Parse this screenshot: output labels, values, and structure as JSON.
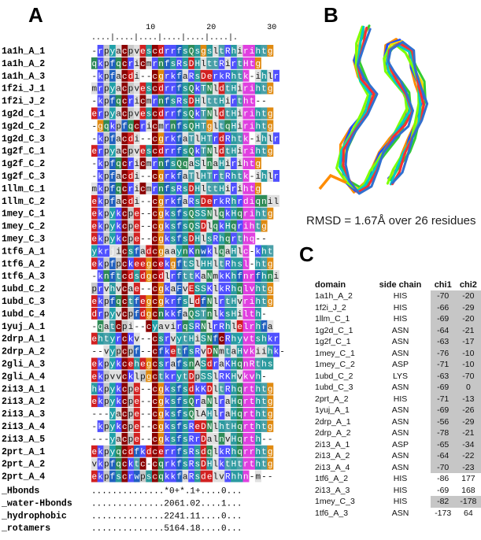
{
  "panel_labels": {
    "a": "A",
    "b": "B",
    "c": "C"
  },
  "alignment": {
    "ruler_numbers": [
      "10",
      "20",
      "30"
    ],
    "ruler_line": "....|....|....|....|....|....|.",
    "rows": [
      {
        "id": "1a1h_A_1",
        "seq": "-rpyacpvescdrrfsQsgsltRhirihtg"
      },
      {
        "id": "1a1h_A_2",
        "seq": "qkpfqcricmrnfsRsDHlttRirtHtg"
      },
      {
        "id": "1a1h_A_3",
        "seq": "-kpfacdi--cgrkfaRsDerkRhtk-ihlr"
      },
      {
        "id": "1f2i_J_1",
        "seq": "mrpyacpvescdrrfsQkTNldtHirihtg"
      },
      {
        "id": "1f2i_J_2",
        "seq": "-kpfqcricmrnfsRsDHlttHirtht--"
      },
      {
        "id": "1g2d_C_1",
        "seq": "erpyacpvescdrrfsQkTNldtHirihtg"
      },
      {
        "id": "1g2d_C_2",
        "seq": "-gqkpfqcricmrnfsQHTgltqHirihtg"
      },
      {
        "id": "1g2d_C_3",
        "seq": "-kpfacdi--cgrkfaTlHTrdRhtk-ihlr"
      },
      {
        "id": "1g2f_C_1",
        "seq": "erpyacpvescdrrfsQkTNldtHirihtg"
      },
      {
        "id": "1g2f_C_2",
        "seq": "-kpfqcricmrnfsQqaSlnaHirihtg"
      },
      {
        "id": "1g2f_C_3",
        "seq": "-kpfacdi--cgrkfaTlHTrtRhtk-ihlr"
      },
      {
        "id": "1llm_C_1",
        "seq": "mkpfqcricmrnfsRsDHlttHirihtg"
      },
      {
        "id": "1llm_C_2",
        "seq": "ekpfacdi--cgrkfaRsDerkRhrdiqnil"
      },
      {
        "id": "1mey_C_1",
        "seq": "ekpykcpe--cgksfsQSSNlqkHqrihtg"
      },
      {
        "id": "1mey_C_2",
        "seq": "ekpykcpe--cgksfsQSDlqkHqrihtg"
      },
      {
        "id": "1mey_C_3",
        "seq": "ekpykcpe--cgksfsDHlsRhqrthq--"
      },
      {
        "id": "1tf6_A_1",
        "seq": "ykrjicsfadcgaaynKnwklqaHlc-kht"
      },
      {
        "id": "1tf6_A_2",
        "seq": "ekpfpckeegcekgftSlHHltRhsl-htg"
      },
      {
        "id": "1tf6_A_3",
        "seq": "-knftcdsdgcdlrfttKaNmkKhfnrfhni"
      },
      {
        "id": "1ubd_C_2",
        "seq": "prvhvcae--cgkaFvESSKlkRhqlvhtg"
      },
      {
        "id": "1ubd_C_3",
        "seq": "ekpfqctfegcgkrfsLdfNlrtHvrihtg"
      },
      {
        "id": "1ubd_C_4",
        "seq": "drpyvcpfdgcnkkfaQSTnlksHilth-"
      },
      {
        "id": "1yuj_A_1",
        "seq": "-qatcpi--cyavirqSRNlrRhlelrhfa"
      },
      {
        "id": "2drp_A_1",
        "seq": "ehtyrckv--csrvytHiSNfcRhyvtshkr"
      },
      {
        "id": "2drp_A_2",
        "seq": "--vypcpf--cfketfsRvDNmtaHvkiihk-"
      },
      {
        "id": "2gli_A_3",
        "seq": "ekpykcehegcsrafsnASdraKHqnRths"
      },
      {
        "id": "2gli_A_4",
        "seq": "ekpvvcklpgctkrytDpSSlRKHvkvh-"
      },
      {
        "id": "2i13_A_1",
        "seq": "hkpykcpe--cgksfsdkKDltRhqrthtg"
      },
      {
        "id": "2i13_A_2",
        "seq": "ekpykcpe--cgksfsQraNlraHqrthtg"
      },
      {
        "id": "2i13_A_3",
        "seq": "---yacpe--cgksfsQlAHlraHqrthtg"
      },
      {
        "id": "2i13_A_4",
        "seq": "-kpykcpe--cgksfsReDNlhtHqrthtg"
      },
      {
        "id": "2i13_A_5",
        "seq": "---yacpe--cgksfsRrDalnvHqrth--"
      },
      {
        "id": "2prt_A_1",
        "seq": "ekpyqcdfkdcerrfsRsdqlkRhqrrhtg"
      },
      {
        "id": "2prt_A_2",
        "seq": "vkpfqcktc-cqrkfsRsDHlktHtrthtg"
      },
      {
        "id": "2prt_A_4",
        "seq": "ekpfscrwpscqkkfaRsdelvRhhn-m--"
      }
    ],
    "annotations": [
      {
        "label": "_Hbonds",
        "value": "..............*0+*.1+....0..."
      },
      {
        "label": "_water-Hbonds",
        "value": "..............2061.02....1..."
      },
      {
        "label": "_hydrophobic",
        "value": "..............2241.11....0..."
      },
      {
        "label": "_rotamers",
        "value": "..............5164.18....0..."
      }
    ]
  },
  "structure": {
    "caption": "RMSD = 1.67Å  over 26 residues",
    "trace_colors": [
      "#ff8c00",
      "#1e50ff",
      "#ffd700",
      "#32cd32",
      "#7fff00",
      "#00c8c8",
      "#ff3030",
      "#3070d0"
    ]
  },
  "chi_table": {
    "headers": {
      "domain": "domain",
      "side_chain": "side chain",
      "chi1": "chi1",
      "chi2": "chi2"
    },
    "rows": [
      {
        "domain": "1a1h_A_2",
        "side_chain": "HIS",
        "chi1": "-70",
        "chi2": "-20",
        "highlight": true
      },
      {
        "domain": "1f2i_J_2",
        "side_chain": "HIS",
        "chi1": "-66",
        "chi2": "-29",
        "highlight": true
      },
      {
        "domain": "1llm_C_1",
        "side_chain": "HIS",
        "chi1": "-69",
        "chi2": "-20",
        "highlight": true
      },
      {
        "domain": "1g2d_C_1",
        "side_chain": "ASN",
        "chi1": "-64",
        "chi2": "-21",
        "highlight": true
      },
      {
        "domain": "1g2f_C_1",
        "side_chain": "ASN",
        "chi1": "-63",
        "chi2": "-17",
        "highlight": true
      },
      {
        "domain": "1mey_C_1",
        "side_chain": "ASN",
        "chi1": "-76",
        "chi2": "-10",
        "highlight": true
      },
      {
        "domain": "1mey_C_2",
        "side_chain": "ASP",
        "chi1": "-71",
        "chi2": "-10",
        "highlight": true
      },
      {
        "domain": "1ubd_C_2",
        "side_chain": "LYS",
        "chi1": "-63",
        "chi2": "-70",
        "highlight": true
      },
      {
        "domain": "1ubd_C_3",
        "side_chain": "ASN",
        "chi1": "-69",
        "chi2": "0",
        "highlight": true
      },
      {
        "domain": "2prt_A_2",
        "side_chain": "HIS",
        "chi1": "-71",
        "chi2": "-13",
        "highlight": true
      },
      {
        "domain": "1yuj_A_1",
        "side_chain": "ASN",
        "chi1": "-69",
        "chi2": "-26",
        "highlight": true
      },
      {
        "domain": "2drp_A_1",
        "side_chain": "ASN",
        "chi1": "-56",
        "chi2": "-29",
        "highlight": true
      },
      {
        "domain": "2drp_A_2",
        "side_chain": "ASN",
        "chi1": "-78",
        "chi2": "-21",
        "highlight": true
      },
      {
        "domain": "2i13_A_1",
        "side_chain": "ASP",
        "chi1": "-65",
        "chi2": "-34",
        "highlight": true
      },
      {
        "domain": "2i13_A_2",
        "side_chain": "ASN",
        "chi1": "-64",
        "chi2": "-22",
        "highlight": true
      },
      {
        "domain": "2i13_A_4",
        "side_chain": "ASN",
        "chi1": "-70",
        "chi2": "-23",
        "highlight": true
      },
      {
        "domain": "1tf6_A_2",
        "side_chain": "HIS",
        "chi1": "-86",
        "chi2": "177",
        "highlight": false
      },
      {
        "domain": "2i13_A_3",
        "side_chain": "HIS",
        "chi1": "-69",
        "chi2": "168",
        "highlight": false
      },
      {
        "domain": "1mey_C_3",
        "side_chain": "HIS",
        "chi1": "-82",
        "chi2": "-178",
        "highlight": true
      },
      {
        "domain": "1tf6_A_3",
        "side_chain": "ASN",
        "chi1": "-173",
        "chi2": "64",
        "highlight": false
      }
    ]
  },
  "residue_colors": {
    "c": "#8b0000",
    "k": "#5050ff",
    "r": "#5050ff",
    "h": "#2a9aa0",
    "d": "#d22020",
    "e": "#d22020",
    "f": "#2060c0",
    "w": "#2060c0",
    "y": "#20a0a8",
    "s": "#2a9a9a",
    "t": "#4aa0a8",
    "n": "#2e8b57",
    "q": "#2e8b57",
    "g": "#e08a10",
    "p": "#c8c8c8",
    "a": "#e0e0e0",
    "v": "#e0e0e0",
    "i": "#e0e0e0",
    "l": "#e0e0e0",
    "m": "#e0e0e0",
    "hydrophobic_pink": "#e040e0"
  }
}
